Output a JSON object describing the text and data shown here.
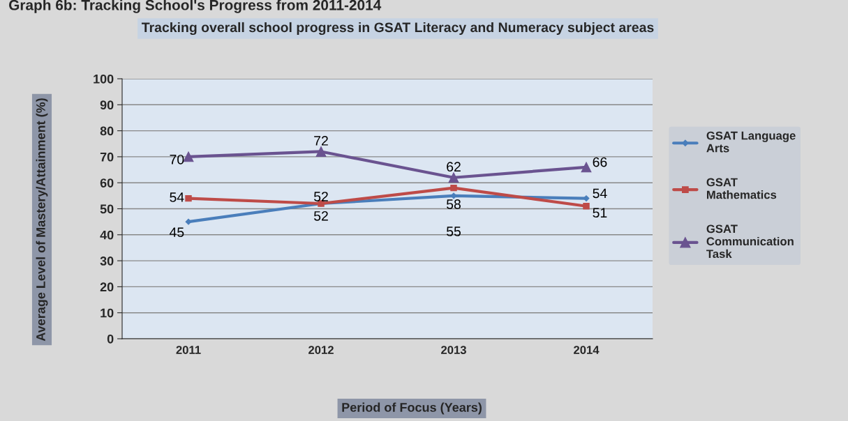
{
  "chart_data": {
    "type": "line",
    "title": "Tracking overall school progress in GSAT Literacy and Numeracy subject areas",
    "annotations": [
      "Graph 6b: Tracking School's Progress from 2011-2014"
    ],
    "xlabel": "Period of Focus (Years)",
    "ylabel": "Average Level of Mastery/Attainment (%)",
    "categories": [
      "2011",
      "2012",
      "2013",
      "2014"
    ],
    "series": [
      {
        "name": "GSAT Language Arts",
        "color": "#4a7ebb",
        "marker": "diamond",
        "values": [
          45,
          52,
          55,
          54
        ]
      },
      {
        "name": "GSAT Mathematics",
        "color": "#be4b48",
        "marker": "square",
        "values": [
          54,
          52,
          58,
          51
        ]
      },
      {
        "name": "GSAT Communication Task",
        "color": "#6a5390",
        "marker": "triangle",
        "values": [
          70,
          72,
          62,
          66
        ]
      }
    ],
    "ylim": [
      0,
      100
    ],
    "yticks": [
      0,
      10,
      20,
      30,
      40,
      50,
      60,
      70,
      80,
      90,
      100
    ],
    "grid": "y",
    "legend": "right",
    "data_labels": true
  }
}
